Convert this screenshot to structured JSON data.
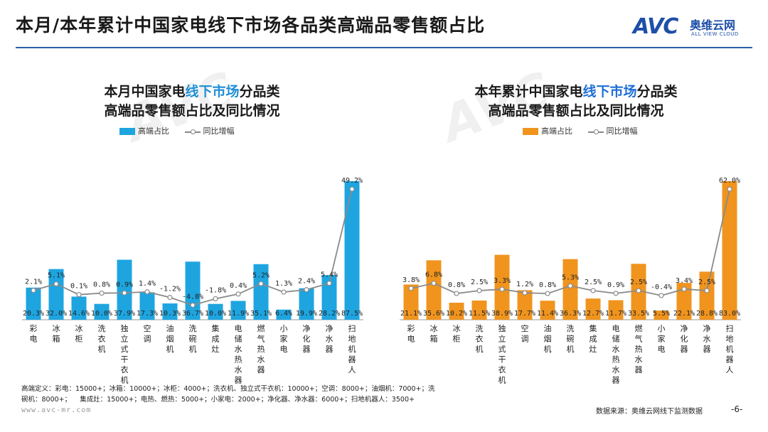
{
  "header": {
    "title": "本月/本年累计中国家电线下市场各品类高端品零售额占比",
    "logo_mark": "AVC",
    "logo_cn": "奥维云网",
    "logo_en": "ALL VIEW CLOUD"
  },
  "legend": {
    "bar_label": "高端占比",
    "line_label": "同比增幅"
  },
  "chart_data": [
    {
      "type": "bar+line",
      "title_line1_pre": "本月中国家电",
      "title_line1_hl": "线下市场",
      "title_line1_post": "分品类",
      "title_line2": "高端品零售额占比及同比情况",
      "bar_color": "#1ea5e0",
      "categories": [
        "彩电",
        "冰箱",
        "冰柜",
        "洗衣机",
        "独立式干衣机",
        "空调",
        "油烟机",
        "洗碗机",
        "集成灶",
        "电储水热水器",
        "燃气热水器",
        "小家电",
        "净化器",
        "净水器",
        "扫地机器人"
      ],
      "bar_labels": [
        "20.3%",
        "32.0%",
        "14.6%",
        "10.0%",
        "37.9%",
        "17.3%",
        "10.3%",
        "36.7%",
        "10.0%",
        "11.9%",
        "35.1%",
        "6.4%",
        "19.9%",
        "28.2%",
        "87.5%"
      ],
      "bar_values": [
        20.3,
        32.0,
        14.6,
        10.0,
        37.9,
        17.3,
        10.3,
        36.7,
        10.0,
        11.9,
        35.1,
        6.4,
        19.9,
        28.2,
        87.5
      ],
      "line_labels": [
        "2.1%",
        "5.1%",
        "0.1%",
        "0.8%",
        "0.9%",
        "1.4%",
        "-1.2%",
        "-4.8%",
        "-1.8%",
        "0.4%",
        "5.2%",
        "1.3%",
        "2.4%",
        "5.4%",
        "49.2%"
      ],
      "line_values": [
        2.1,
        5.1,
        0.1,
        0.8,
        0.9,
        1.4,
        -1.2,
        -4.8,
        -1.8,
        0.4,
        5.2,
        1.3,
        2.4,
        5.4,
        49.2
      ]
    },
    {
      "type": "bar+line",
      "title_line1_pre": "本年累计中国家电",
      "title_line1_hl": "线下市场",
      "title_line1_post": "分品类",
      "title_line2": "高端品零售额占比及同比情况",
      "bar_color": "#f0941e",
      "categories": [
        "彩电",
        "冰箱",
        "冰柜",
        "洗衣机",
        "独立式干衣机",
        "空调",
        "油烟机",
        "洗碗机",
        "集成灶",
        "电储水热水器",
        "燃气热水器",
        "小家电",
        "净化器",
        "净水器",
        "扫地机器人"
      ],
      "bar_labels": [
        "21.1%",
        "35.6%",
        "10.2%",
        "11.5%",
        "38.9%",
        "17.7%",
        "11.4%",
        "36.3%",
        "12.7%",
        "11.7%",
        "33.5%",
        "5.5%",
        "22.1%",
        "28.8%",
        "83.0%"
      ],
      "bar_values": [
        21.1,
        35.6,
        10.2,
        11.5,
        38.9,
        17.7,
        11.4,
        36.3,
        12.7,
        11.7,
        33.5,
        5.5,
        22.1,
        28.8,
        83.0
      ],
      "line_labels": [
        "3.8%",
        "6.8%",
        "0.8%",
        "2.5%",
        "3.3%",
        "1.2%",
        "0.8%",
        "5.3%",
        "2.5%",
        "0.9%",
        "2.5%",
        "-0.4%",
        "3.4%",
        "2.5%",
        "62.0%"
      ],
      "line_values": [
        3.8,
        6.8,
        0.8,
        2.5,
        3.3,
        1.2,
        0.8,
        5.3,
        2.5,
        0.9,
        2.5,
        -0.4,
        3.4,
        2.5,
        62.0
      ]
    }
  ],
  "footnote": {
    "line1": "高端定义：彩电：15000+；冰箱：10000+；冰柜：4000+；洗衣机、独立式干衣机：10000+；空调：8000+；油烟机：7000+；洗",
    "line2": "碗机：8000+；    集成灶：15000+；电热、燃热：5000+；小家电：2000+；净化器、净水器：6000+；扫地机器人：3500+"
  },
  "website": "www.avc-mr.com",
  "source": "数据来源：奥维云网线下监测数据",
  "page_number": "-6-"
}
